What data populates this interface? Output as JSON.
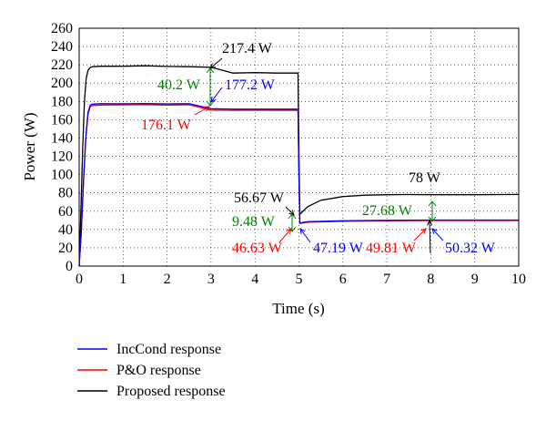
{
  "chart_data": {
    "type": "line",
    "title": "",
    "xlabel": "Time (s)",
    "ylabel": "Power (W)",
    "xlim": [
      0,
      10
    ],
    "ylim": [
      0,
      260
    ],
    "xticks": [
      0,
      1,
      2,
      3,
      4,
      5,
      6,
      7,
      8,
      9,
      10
    ],
    "yticks": [
      0,
      20,
      40,
      60,
      80,
      100,
      120,
      140,
      160,
      180,
      200,
      220,
      240,
      260
    ],
    "grid": true,
    "legend_position": "below",
    "series": [
      {
        "name": "IncCond response",
        "color": "#0000ff",
        "x": [
          0,
          0.05,
          0.1,
          0.15,
          0.2,
          0.25,
          0.3,
          0.5,
          1,
          1.5,
          2,
          2.5,
          3,
          3.5,
          4,
          4.5,
          4.98,
          5.0,
          5.02,
          5.2,
          6,
          7,
          8,
          9,
          10
        ],
        "y": [
          0,
          40,
          95,
          140,
          168,
          176,
          177,
          177.5,
          177.4,
          177.6,
          177.3,
          177.5,
          172,
          171.5,
          171.5,
          171.5,
          171.5,
          100,
          47.19,
          48.5,
          49.5,
          50,
          50.32,
          50.3,
          50.3
        ]
      },
      {
        "name": "P&O response",
        "color": "#ff0000",
        "x": [
          0,
          0.05,
          0.1,
          0.15,
          0.2,
          0.25,
          0.3,
          0.5,
          1,
          1.5,
          2,
          2.5,
          3,
          3.5,
          4,
          4.5,
          4.98,
          5.0,
          5.02,
          5.2,
          6,
          7,
          8,
          9,
          10
        ],
        "y": [
          0,
          38,
          92,
          138,
          166,
          174,
          175.5,
          176,
          176.2,
          176.5,
          176,
          176.3,
          170.5,
          170.2,
          170.3,
          170.2,
          170.3,
          100,
          46.63,
          48,
          49,
          49.5,
          49.81,
          49.8,
          49.8
        ]
      },
      {
        "name": "Proposed response",
        "color": "#000000",
        "x": [
          0,
          0.04,
          0.08,
          0.12,
          0.16,
          0.2,
          0.25,
          0.3,
          0.5,
          1,
          1.5,
          2,
          2.5,
          3,
          3.5,
          4,
          4.5,
          4.98,
          5.0,
          5.02,
          5.2,
          5.5,
          6,
          6.5,
          7,
          7.5,
          8,
          9,
          10
        ],
        "y": [
          0,
          60,
          130,
          180,
          205,
          214,
          217,
          218,
          218.5,
          218.5,
          219,
          218.3,
          218,
          217.4,
          211,
          211.5,
          211,
          211,
          120,
          56.67,
          65,
          72,
          76,
          77.5,
          78,
          78.2,
          78,
          78,
          78.3
        ]
      }
    ],
    "annotations": [
      {
        "text": "217.4 W",
        "color": "#000000"
      },
      {
        "text": "40.2 W",
        "color": "#008000"
      },
      {
        "text": "177.2 W",
        "color": "#0000ff"
      },
      {
        "text": "176.1 W",
        "color": "#ff0000"
      },
      {
        "text": "56.67 W",
        "color": "#000000"
      },
      {
        "text": "9.48 W",
        "color": "#008000"
      },
      {
        "text": "46.63 W",
        "color": "#ff0000"
      },
      {
        "text": "47.19 W",
        "color": "#0000ff"
      },
      {
        "text": "78 W",
        "color": "#000000"
      },
      {
        "text": "27.68 W",
        "color": "#008000"
      },
      {
        "text": "49.81 W",
        "color": "#ff0000"
      },
      {
        "text": "50.32 W",
        "color": "#0000ff"
      }
    ]
  }
}
